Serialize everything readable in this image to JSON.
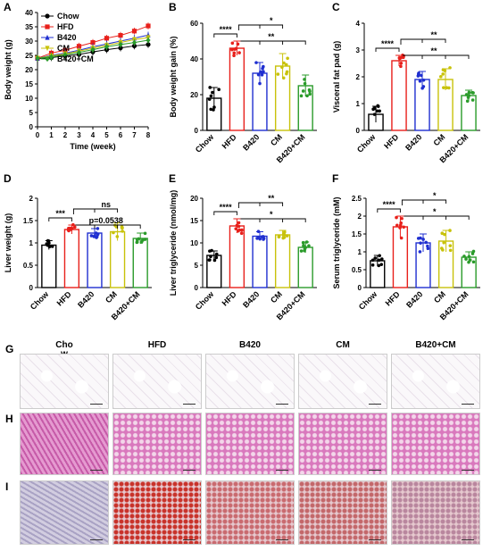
{
  "colors": {
    "Chow": "#000000",
    "HFD": "#e8201b",
    "B420": "#1f2fd0",
    "CM": "#c8c20a",
    "B420+CM": "#2a9b2a"
  },
  "panels": {
    "A": "A",
    "B": "B",
    "C": "C",
    "D": "D",
    "E": "E",
    "F": "F",
    "G": "G",
    "H": "H",
    "I": "I"
  },
  "chart_data": [
    {
      "id": "A",
      "type": "line",
      "xlabel": "Time (week)",
      "ylabel": "Body weight (g)",
      "x": [
        0,
        1,
        2,
        3,
        4,
        5,
        6,
        7,
        8
      ],
      "xlim": [
        0,
        8
      ],
      "ylim": [
        0,
        40
      ],
      "yticks": [
        0,
        5,
        10,
        15,
        20,
        25,
        30,
        35,
        40
      ],
      "series": [
        {
          "name": "Chow",
          "values": [
            23.8,
            24.2,
            24.8,
            25.3,
            26.2,
            27.0,
            27.6,
            28.3,
            28.8
          ]
        },
        {
          "name": "HFD",
          "values": [
            24.0,
            25.8,
            26.8,
            28.2,
            29.5,
            31.0,
            32.0,
            33.5,
            35.3
          ]
        },
        {
          "name": "B420",
          "values": [
            24.0,
            25.0,
            25.8,
            26.8,
            28.0,
            29.0,
            30.0,
            31.0,
            32.1
          ]
        },
        {
          "name": "CM",
          "values": [
            24.0,
            24.8,
            25.5,
            26.5,
            27.5,
            28.5,
            29.5,
            30.5,
            31.2
          ]
        },
        {
          "name": "B420+CM",
          "values": [
            24.0,
            24.5,
            25.2,
            26.0,
            27.0,
            28.0,
            28.8,
            29.5,
            30.3
          ]
        }
      ]
    },
    {
      "id": "B",
      "type": "bar",
      "ylabel": "Body weight gain (%)",
      "categories": [
        "Chow",
        "HFD",
        "B420",
        "CM",
        "B420+CM"
      ],
      "values": [
        18,
        46,
        32,
        36,
        25
      ],
      "errors": [
        6,
        4,
        6,
        7,
        6
      ],
      "ylim": [
        0,
        60
      ],
      "yticks": [
        0,
        20,
        40,
        60
      ],
      "significance": [
        "****",
        "**",
        "*"
      ]
    },
    {
      "id": "C",
      "type": "bar",
      "ylabel": "Visceral fat pad (g)",
      "categories": [
        "Chow",
        "HFD",
        "B420",
        "CM",
        "B420+CM"
      ],
      "values": [
        0.6,
        2.6,
        1.9,
        1.9,
        1.3
      ],
      "errors": [
        0.3,
        0.2,
        0.3,
        0.4,
        0.2
      ],
      "ylim": [
        0,
        4
      ],
      "yticks": [
        0,
        1,
        2,
        3,
        4
      ],
      "significance": [
        "****",
        "**",
        "**"
      ]
    },
    {
      "id": "D",
      "type": "bar",
      "ylabel": "Liver weight (g)",
      "categories": [
        "Chow",
        "HFD",
        "B420",
        "CM",
        "B420+CM"
      ],
      "values": [
        0.95,
        1.3,
        1.22,
        1.25,
        1.1
      ],
      "errors": [
        0.1,
        0.1,
        0.1,
        0.2,
        0.12
      ],
      "ylim": [
        0,
        2.0
      ],
      "yticks": [
        0,
        0.5,
        1.0,
        1.5,
        2.0
      ],
      "significance": [
        "***",
        "p=0.0538",
        "ns"
      ]
    },
    {
      "id": "E",
      "type": "bar",
      "ylabel": "Liver triglyceride (nmol/mg)",
      "categories": [
        "Chow",
        "HFD",
        "B420",
        "CM",
        "B420+CM"
      ],
      "values": [
        7.2,
        13.8,
        11.5,
        11.8,
        9.0
      ],
      "errors": [
        1.0,
        1.6,
        1.0,
        1.0,
        1.2
      ],
      "ylim": [
        0,
        20
      ],
      "yticks": [
        0,
        5,
        10,
        15,
        20
      ],
      "significance": [
        "****",
        "*",
        "**"
      ]
    },
    {
      "id": "F",
      "type": "bar",
      "ylabel": "Serum triglyceride (mM)",
      "categories": [
        "Chow",
        "HFD",
        "B420",
        "CM",
        "B420+CM"
      ],
      "values": [
        0.75,
        1.7,
        1.25,
        1.3,
        0.85
      ],
      "errors": [
        0.15,
        0.3,
        0.25,
        0.3,
        0.15
      ],
      "ylim": [
        0,
        2.5
      ],
      "yticks": [
        0,
        0.5,
        1.0,
        1.5,
        2.0,
        2.5
      ],
      "significance": [
        "****",
        "*",
        "*"
      ]
    }
  ],
  "histology": {
    "columns": [
      "Cho\nw",
      "HFD",
      "B420",
      "CM",
      "B420+CM"
    ]
  }
}
